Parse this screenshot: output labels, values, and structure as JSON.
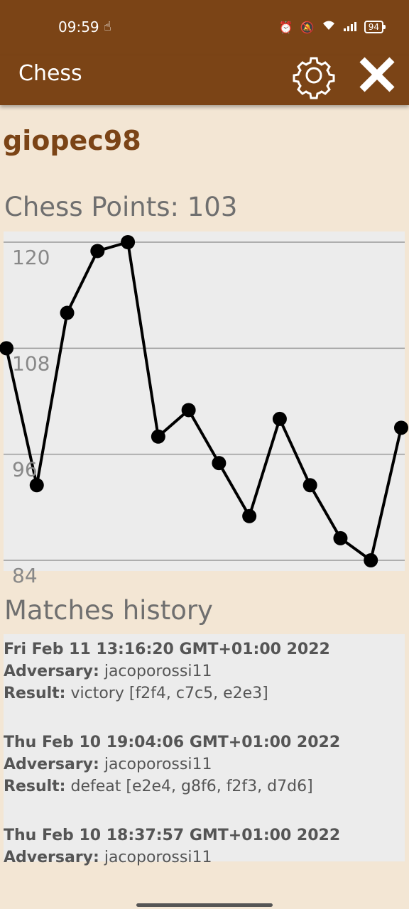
{
  "status": {
    "time": "09:59",
    "battery": "94"
  },
  "appbar": {
    "title": "Chess"
  },
  "profile": {
    "username": "giopec98",
    "points_label": "Chess Points: 103"
  },
  "chart_data": {
    "type": "line",
    "y_ticks": [
      120,
      108,
      96,
      84
    ],
    "ylim": [
      84,
      120
    ],
    "values": [
      108,
      92.5,
      112,
      119,
      120,
      98,
      101,
      95,
      89,
      100,
      92.5,
      86.5,
      84,
      99
    ],
    "grid": true,
    "color": "#000000"
  },
  "history": {
    "title": "Matches history",
    "adversary_label": "Adversary:",
    "result_label": "Result:",
    "matches": [
      {
        "date": "Fri Feb 11 13:16:20 GMT+01:00 2022",
        "adversary": "jacoporossi11",
        "result": "victory [f2f4, c7c5, e2e3]"
      },
      {
        "date": "Thu Feb 10 19:04:06 GMT+01:00 2022",
        "adversary": "jacoporossi11",
        "result": "defeat [e2e4, g8f6, f2f3, d7d6]"
      },
      {
        "date": "Thu Feb 10 18:37:57 GMT+01:00 2022",
        "adversary": "jacoporossi11",
        "result": ""
      }
    ]
  },
  "colors": {
    "brand": "#7b4416",
    "background": "#f3e6d4",
    "panel": "#ececec"
  }
}
